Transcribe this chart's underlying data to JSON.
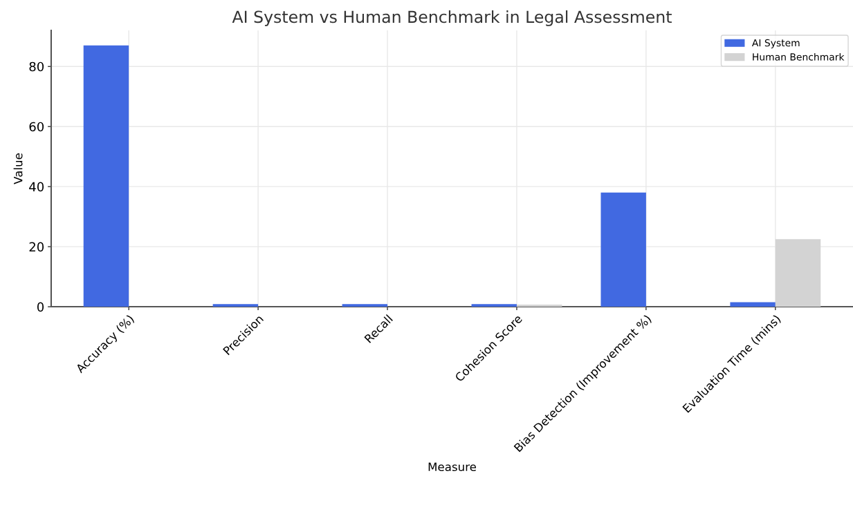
{
  "chart_data": {
    "type": "bar",
    "title": "AI System vs Human Benchmark in Legal Assessment",
    "xlabel": "Measure",
    "ylabel": "Value",
    "categories": [
      "Accuracy (%)",
      "Precision",
      "Recall",
      "Cohesion Score",
      "Bias Detection (Improvement %)",
      "Evaluation Time (mins)"
    ],
    "series": [
      {
        "name": "AI System",
        "color": "#4169e1",
        "values": [
          87,
          0.9,
          0.9,
          0.85,
          38,
          1.5
        ]
      },
      {
        "name": "Human Benchmark",
        "color": "#d3d3d3",
        "values": [
          null,
          null,
          null,
          0.7,
          null,
          22.5
        ]
      }
    ],
    "ylim": [
      0,
      92
    ],
    "yticks": [
      0,
      20,
      40,
      60,
      80
    ],
    "grid": true,
    "legend": "top right"
  }
}
